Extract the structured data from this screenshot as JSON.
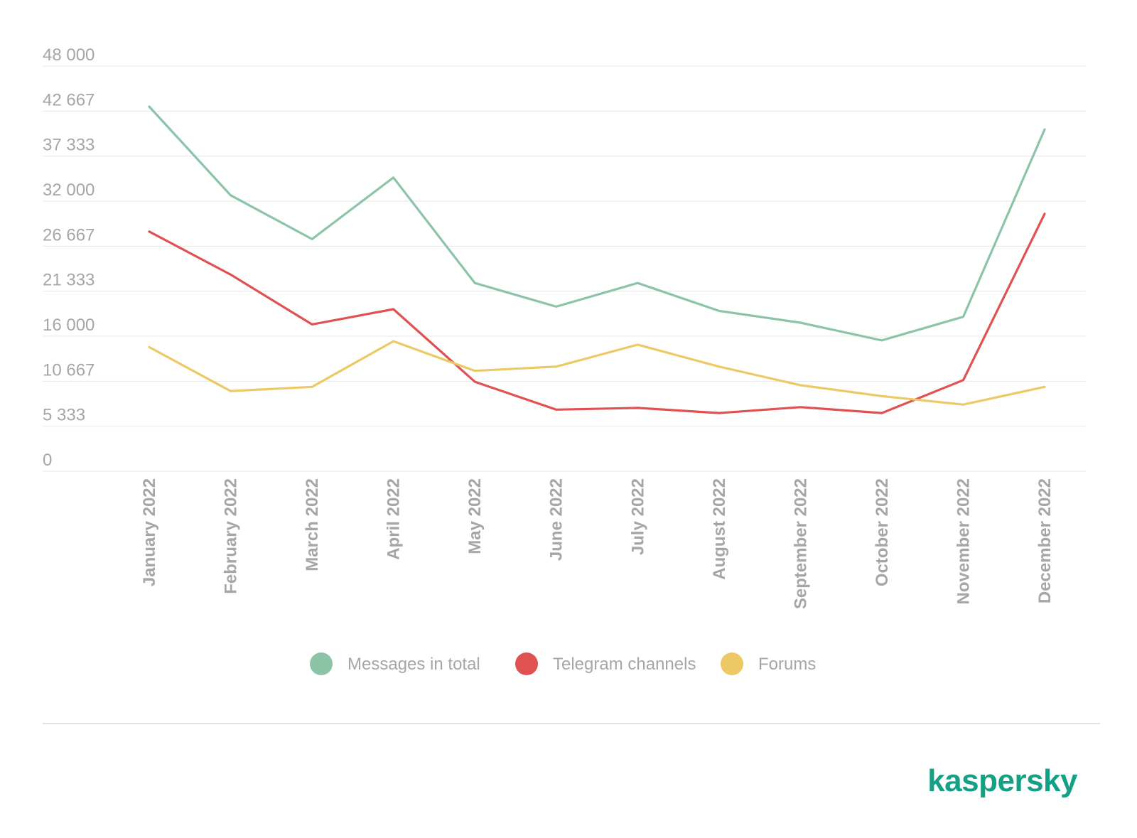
{
  "chart_data": {
    "type": "line",
    "categories": [
      "January 2022",
      "February 2022",
      "March 2022",
      "April 2022",
      "May 2022",
      "June 2022",
      "July 2022",
      "August 2022",
      "September 2022",
      "October 2022",
      "November 2022",
      "December 2022"
    ],
    "ylim": [
      0,
      48000
    ],
    "y_ticks": [
      0,
      5333,
      10667,
      16000,
      21333,
      26667,
      32000,
      37333,
      42667,
      48000
    ],
    "y_tick_labels": [
      "0",
      "5 333",
      "10 667",
      "16 000",
      "21 333",
      "26 667",
      "32 000",
      "37 333",
      "42 667",
      "48 000"
    ],
    "grid": true,
    "legend_position": "bottom",
    "series": [
      {
        "name": "Messages in total",
        "color": "#8cc4a8",
        "values": [
          43200,
          32700,
          27500,
          34800,
          22300,
          19500,
          22300,
          19000,
          17600,
          15500,
          18300,
          40500
        ]
      },
      {
        "name": "Telegram channels",
        "color": "#e05252",
        "values": [
          28400,
          23300,
          17400,
          19200,
          10600,
          7300,
          7500,
          6900,
          7600,
          6900,
          10800,
          30500
        ]
      },
      {
        "name": "Forums",
        "color": "#ecc965",
        "values": [
          14700,
          9500,
          10000,
          15400,
          11900,
          12400,
          15000,
          12400,
          10200,
          8900,
          7900,
          10000
        ]
      }
    ]
  },
  "branding": {
    "logo_text": "kaspersky",
    "logo_color": "#14a085"
  }
}
